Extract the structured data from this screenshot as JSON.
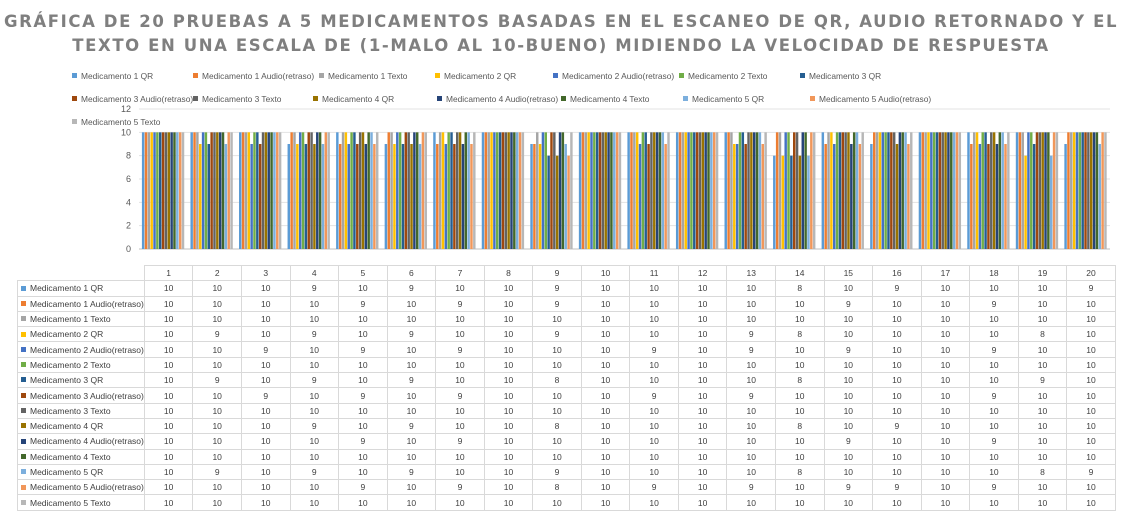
{
  "chart_data": {
    "type": "bar",
    "title": "GRÁFICA DE 20 PRUEBAS A 5 MEDICAMENTOS BASADAS EN EL ESCANEO DE QR, AUDIO RETORNADO Y EL TEXTO EN UNA ESCALA DE (1-MALO AL 10-BUENO) MIDIENDO LA VELOCIDAD DE RESPUESTA",
    "title_lines": [
      "GRÁFICA DE 20 PRUEBAS A 5 MEDICAMENTOS BASADAS EN EL ESCANEO DE QR, AUDIO RETORNADO Y EL",
      "TEXTO EN UNA ESCALA DE (1-MALO AL 10-BUENO) MIDIENDO LA VELOCIDAD DE RESPUESTA"
    ],
    "xlabel": "",
    "ylabel": "",
    "ylim": [
      0,
      12
    ],
    "yticks": [
      0,
      2,
      4,
      6,
      8,
      10,
      12
    ],
    "grid": true,
    "legend_position": "top",
    "data_table": true,
    "categories": [
      "1",
      "2",
      "3",
      "4",
      "5",
      "6",
      "7",
      "8",
      "9",
      "10",
      "11",
      "12",
      "13",
      "14",
      "15",
      "16",
      "17",
      "18",
      "19",
      "20"
    ],
    "series": [
      {
        "name": "Medicamento  1 QR",
        "color": "#5b9bd5",
        "values": [
          10,
          10,
          10,
          9,
          10,
          9,
          10,
          10,
          9,
          10,
          10,
          10,
          10,
          8,
          10,
          9,
          10,
          10,
          10,
          9
        ]
      },
      {
        "name": "Medicamento  1 Audio(retraso)",
        "color": "#ed7d31",
        "values": [
          10,
          10,
          10,
          10,
          9,
          10,
          9,
          10,
          9,
          10,
          10,
          10,
          10,
          10,
          9,
          10,
          10,
          9,
          10,
          10
        ]
      },
      {
        "name": "Medicamento  1 Texto",
        "color": "#a5a5a5",
        "values": [
          10,
          10,
          10,
          10,
          10,
          10,
          10,
          10,
          10,
          10,
          10,
          10,
          10,
          10,
          10,
          10,
          10,
          10,
          10,
          10
        ]
      },
      {
        "name": "Medicamento 2 QR",
        "color": "#ffc000",
        "values": [
          10,
          9,
          10,
          9,
          10,
          9,
          10,
          10,
          9,
          10,
          10,
          10,
          9,
          8,
          10,
          10,
          10,
          10,
          8,
          10
        ]
      },
      {
        "name": "Medicamento 2 Audio(retraso)",
        "color": "#4472c4",
        "values": [
          10,
          10,
          9,
          10,
          9,
          10,
          9,
          10,
          10,
          10,
          9,
          10,
          9,
          10,
          9,
          10,
          10,
          9,
          10,
          10
        ]
      },
      {
        "name": "Medicamento 2 Texto",
        "color": "#70ad47",
        "values": [
          10,
          10,
          10,
          10,
          10,
          10,
          10,
          10,
          10,
          10,
          10,
          10,
          10,
          10,
          10,
          10,
          10,
          10,
          10,
          10
        ]
      },
      {
        "name": "Medicamento 3 QR",
        "color": "#255e91",
        "values": [
          10,
          9,
          10,
          9,
          10,
          9,
          10,
          10,
          8,
          10,
          10,
          10,
          10,
          8,
          10,
          10,
          10,
          10,
          9,
          10
        ]
      },
      {
        "name": "Medicamento 3 Audio(retraso)",
        "color": "#9e480e",
        "values": [
          10,
          10,
          9,
          10,
          9,
          10,
          9,
          10,
          10,
          10,
          9,
          10,
          9,
          10,
          10,
          10,
          10,
          9,
          10,
          10
        ]
      },
      {
        "name": "Medicamento 3 Texto",
        "color": "#636363",
        "values": [
          10,
          10,
          10,
          10,
          10,
          10,
          10,
          10,
          10,
          10,
          10,
          10,
          10,
          10,
          10,
          10,
          10,
          10,
          10,
          10
        ]
      },
      {
        "name": "Medicamento 4 QR",
        "color": "#997300",
        "values": [
          10,
          10,
          10,
          9,
          10,
          9,
          10,
          10,
          8,
          10,
          10,
          10,
          10,
          8,
          10,
          9,
          10,
          10,
          10,
          10
        ]
      },
      {
        "name": "Medicamento 4 Audio(retraso)",
        "color": "#264478",
        "values": [
          10,
          10,
          10,
          10,
          9,
          10,
          9,
          10,
          10,
          10,
          10,
          10,
          10,
          10,
          9,
          10,
          10,
          9,
          10,
          10
        ]
      },
      {
        "name": "Medicamento 4 Texto",
        "color": "#43682b",
        "values": [
          10,
          10,
          10,
          10,
          10,
          10,
          10,
          10,
          10,
          10,
          10,
          10,
          10,
          10,
          10,
          10,
          10,
          10,
          10,
          10
        ]
      },
      {
        "name": "Medicamento 5 QR",
        "color": "#7cafdd",
        "values": [
          10,
          9,
          10,
          9,
          10,
          9,
          10,
          10,
          9,
          10,
          10,
          10,
          10,
          8,
          10,
          10,
          10,
          10,
          8,
          9
        ]
      },
      {
        "name": "Medicamento 5 Audio(retraso)",
        "color": "#f1975a",
        "values": [
          10,
          10,
          10,
          10,
          9,
          10,
          9,
          10,
          8,
          10,
          9,
          10,
          9,
          10,
          9,
          9,
          10,
          9,
          10,
          10
        ]
      },
      {
        "name": "Medicamento 5 Texto",
        "color": "#b7b7b7",
        "values": [
          10,
          10,
          10,
          10,
          10,
          10,
          10,
          10,
          10,
          10,
          10,
          10,
          10,
          10,
          10,
          10,
          10,
          10,
          10,
          10
        ]
      }
    ]
  }
}
